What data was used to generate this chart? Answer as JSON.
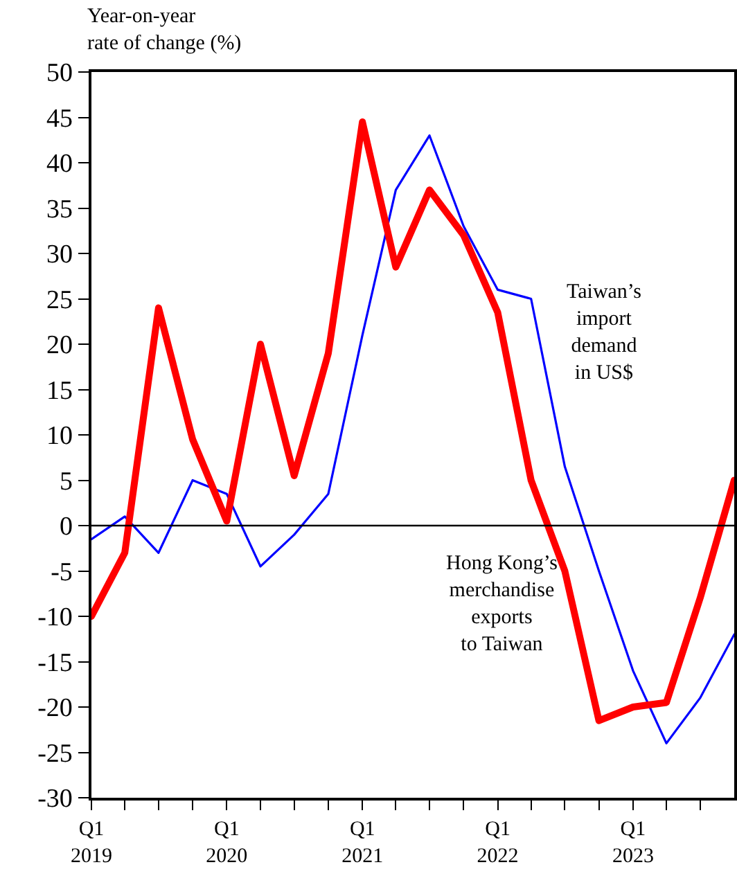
{
  "chart_data": {
    "type": "line",
    "ylabel": "Year-on-year\nrate of change (%)",
    "x": [
      "2019-01",
      "2019-04",
      "2019-07",
      "2019-10",
      "2020-01",
      "2020-04",
      "2020-07",
      "2020-10",
      "2021-01",
      "2021-04",
      "2021-07",
      "2021-10",
      "2022-01",
      "2022-04",
      "2022-07",
      "2022-10",
      "2023-01",
      "2023-04",
      "2023-07",
      "2023-10"
    ],
    "series": [
      {
        "name": "Taiwan’s\nimport\ndemand\nin US$",
        "color": "#0000ff",
        "values": [
          -1.5,
          1,
          -3,
          5,
          3.5,
          -4.5,
          -1,
          3.5,
          21,
          37,
          43,
          33,
          26,
          25,
          6.5,
          -5,
          -16,
          -24,
          -19,
          -12
        ]
      },
      {
        "name": "Hong Kong’s\nmerchandise\nexports\nto Taiwan",
        "color": "#ff0000",
        "values": [
          -10,
          -3,
          24,
          9.5,
          0.5,
          20,
          5.5,
          19,
          44.5,
          28.5,
          37,
          32,
          23.5,
          5,
          -5,
          -21.5,
          -20,
          -19.5,
          -8,
          5
        ]
      }
    ],
    "xlim": [
      "2019-01",
      "2023-10"
    ],
    "xticks": [
      {
        "value": "2019-01",
        "label": "Q1\n2019"
      },
      {
        "value": "2019-04",
        "label": null
      },
      {
        "value": "2019-07",
        "label": null
      },
      {
        "value": "2019-10",
        "label": null
      },
      {
        "value": "2020-01",
        "label": "Q1\n2020"
      },
      {
        "value": "2020-04",
        "label": null
      },
      {
        "value": "2020-07",
        "label": null
      },
      {
        "value": "2020-10",
        "label": null
      },
      {
        "value": "2021-01",
        "label": "Q1\n2021"
      },
      {
        "value": "2021-04",
        "label": null
      },
      {
        "value": "2021-07",
        "label": null
      },
      {
        "value": "2021-10",
        "label": null
      },
      {
        "value": "2022-01",
        "label": "Q1\n2022"
      },
      {
        "value": "2022-04",
        "label": null
      },
      {
        "value": "2022-07",
        "label": null
      },
      {
        "value": "2022-10",
        "label": null
      },
      {
        "value": "2023-01",
        "label": "Q1\n2023"
      },
      {
        "value": "2023-04",
        "label": null
      },
      {
        "value": "2023-07",
        "label": null
      }
    ],
    "ylim": [
      -30,
      50
    ],
    "yticks": [
      -30,
      -25,
      -20,
      -15,
      -10,
      -5,
      0,
      5,
      10,
      15,
      20,
      25,
      30,
      35,
      40,
      45,
      50
    ],
    "ref_lines": [
      {
        "axis": "y",
        "value": 0,
        "color": "#000000"
      }
    ],
    "legend": false,
    "marker": "none",
    "line_style": "solid"
  }
}
